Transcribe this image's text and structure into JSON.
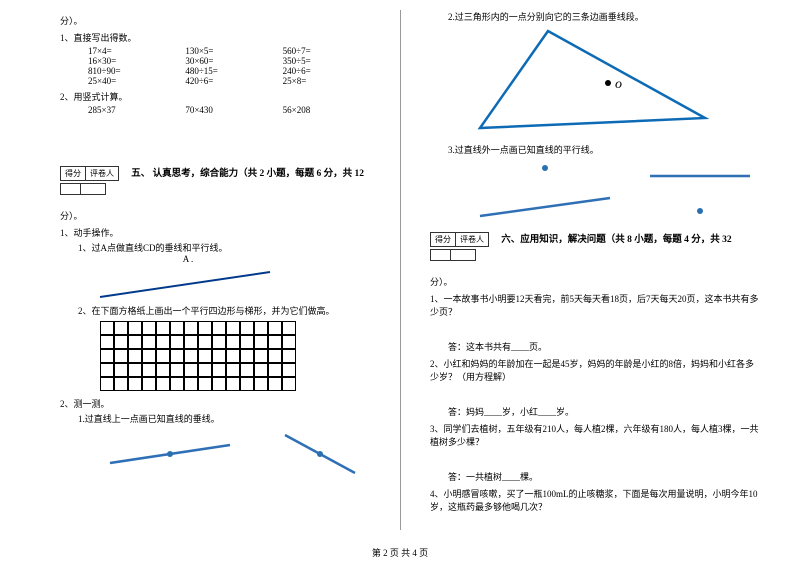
{
  "score_labels": {
    "score": "得分",
    "reviewer": "评卷人"
  },
  "col1": {
    "fen": "分）。",
    "q1_header": "1、直接写出得数。",
    "q1_rows": [
      [
        "17×4=",
        "130×5=",
        "560÷7="
      ],
      [
        "16×30=",
        "30×60=",
        "350÷5="
      ],
      [
        "810÷90=",
        "480÷15=",
        "240÷6="
      ],
      [
        "25×40=",
        "420÷6=",
        "25×8="
      ]
    ],
    "q2_header": "2、用竖式计算。",
    "q2_row": [
      "285×37",
      "70×430",
      "56×208"
    ],
    "section5": "五、 认真思考，综合能力（共 2 小题，每题 6 分，共 12",
    "fen2": "分）。",
    "s5_q1": "1、动手操作。",
    "s5_q1_1": "1、过A点做直线CD的垂线和平行线。",
    "pointA": "A .",
    "s5_q1_2": "2、在下面方格纸上画出一个平行四边形与梯形，并为它们做高。",
    "s5_q2": "2、测一测。",
    "s5_q2_1": "1.过直线上一点画已知直线的垂线。"
  },
  "col2": {
    "q2": "2.过三角形内的一点分别向它的三条边画垂线段。",
    "pointO": "o",
    "q3": "3.过直线外一点画已知直线的平行线。",
    "section6": "六、应用知识，解决问题（共 8 小题，每题 4 分，共 32",
    "fen": "分）。",
    "p1": "1、一本故事书小明要12天看完，前5天每天看18页，后7天每天20页，这本书共有多少页？",
    "a1": "答：这本书共有____页。",
    "p2": "2、小红和妈妈的年龄加在一起是45岁，妈妈的年龄是小红的8倍，妈妈和小红各多少岁？（用方程解）",
    "a2": "答：妈妈____岁，小红____岁。",
    "p3": "3、同学们去植树，五年级有210人，每人植2棵，六年级有180人，每人植3棵，一共植树多少棵？",
    "a3": "答：一共植树____棵。",
    "p4": "4、小明感冒咳嗽，买了一瓶100mL的止咳糖浆，下面是每次用量说明，小明今年10岁，这瓶药最多够他喝几次？"
  },
  "footer": "第 2 页 共 4 页",
  "colors": {
    "line_navy": "#003a8c",
    "line_blue": "#2f6fb5",
    "triangle": "#0d6bb5",
    "dot": "#2a6fb0"
  }
}
